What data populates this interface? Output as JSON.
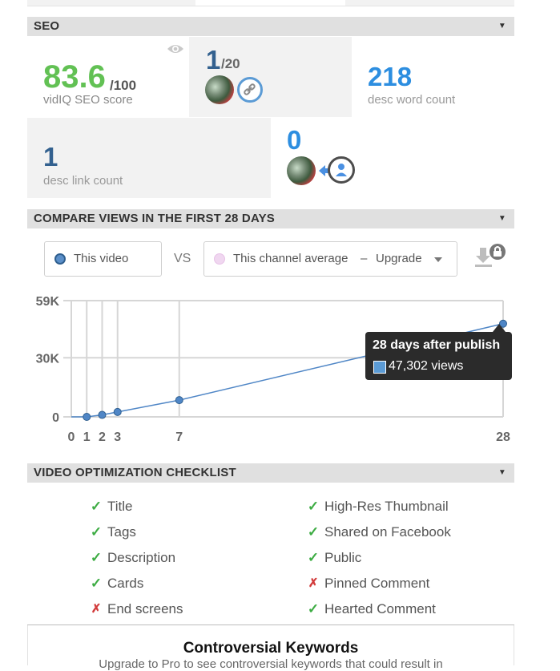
{
  "seo": {
    "title": "SEO",
    "score_value": "83.6",
    "score_max": "/100",
    "score_label": "vidIQ SEO score",
    "links_count": "1",
    "links_max": "/20",
    "word_count": "218",
    "word_label": "desc word count",
    "link_count": "1",
    "link_label": "desc link count",
    "subscribe_count": "0"
  },
  "compare": {
    "title": "COMPARE VIEWS IN THE FIRST 28 DAYS",
    "this_video": "This video",
    "vs": "VS",
    "channel_avg": "This channel average",
    "dash": "–",
    "upgrade": "Upgrade"
  },
  "chart_data": {
    "type": "line",
    "x": [
      0,
      1,
      2,
      3,
      7,
      28
    ],
    "series": [
      {
        "name": "This video",
        "values": [
          0,
          0,
          1000,
          2500,
          8500,
          47302
        ]
      }
    ],
    "x_ticks": [
      "0",
      "1",
      "2",
      "3",
      "7",
      "28"
    ],
    "y_ticks": [
      "0",
      "30K",
      "59K"
    ],
    "ylim": [
      0,
      59000
    ],
    "tooltip_title": "28 days after publish",
    "tooltip_value": "47,302 views",
    "color": "#4f86c6"
  },
  "checklist": {
    "title": "VIDEO OPTIMIZATION CHECKLIST",
    "left": [
      {
        "label": "Title",
        "ok": true
      },
      {
        "label": "Tags",
        "ok": true
      },
      {
        "label": "Description",
        "ok": true
      },
      {
        "label": "Cards",
        "ok": true
      },
      {
        "label": "End screens",
        "ok": false
      }
    ],
    "right": [
      {
        "label": "High-Res Thumbnail",
        "ok": true
      },
      {
        "label": "Shared on Facebook",
        "ok": true
      },
      {
        "label": "Public",
        "ok": true
      },
      {
        "label": "Pinned Comment",
        "ok": false
      },
      {
        "label": "Hearted Comment",
        "ok": true
      }
    ]
  },
  "controversial": {
    "title": "Controversial Keywords",
    "text": "Upgrade to Pro to see controversial keywords that could result in"
  },
  "icons": {
    "check": "✓",
    "cross": "✗",
    "caret": "▼"
  }
}
